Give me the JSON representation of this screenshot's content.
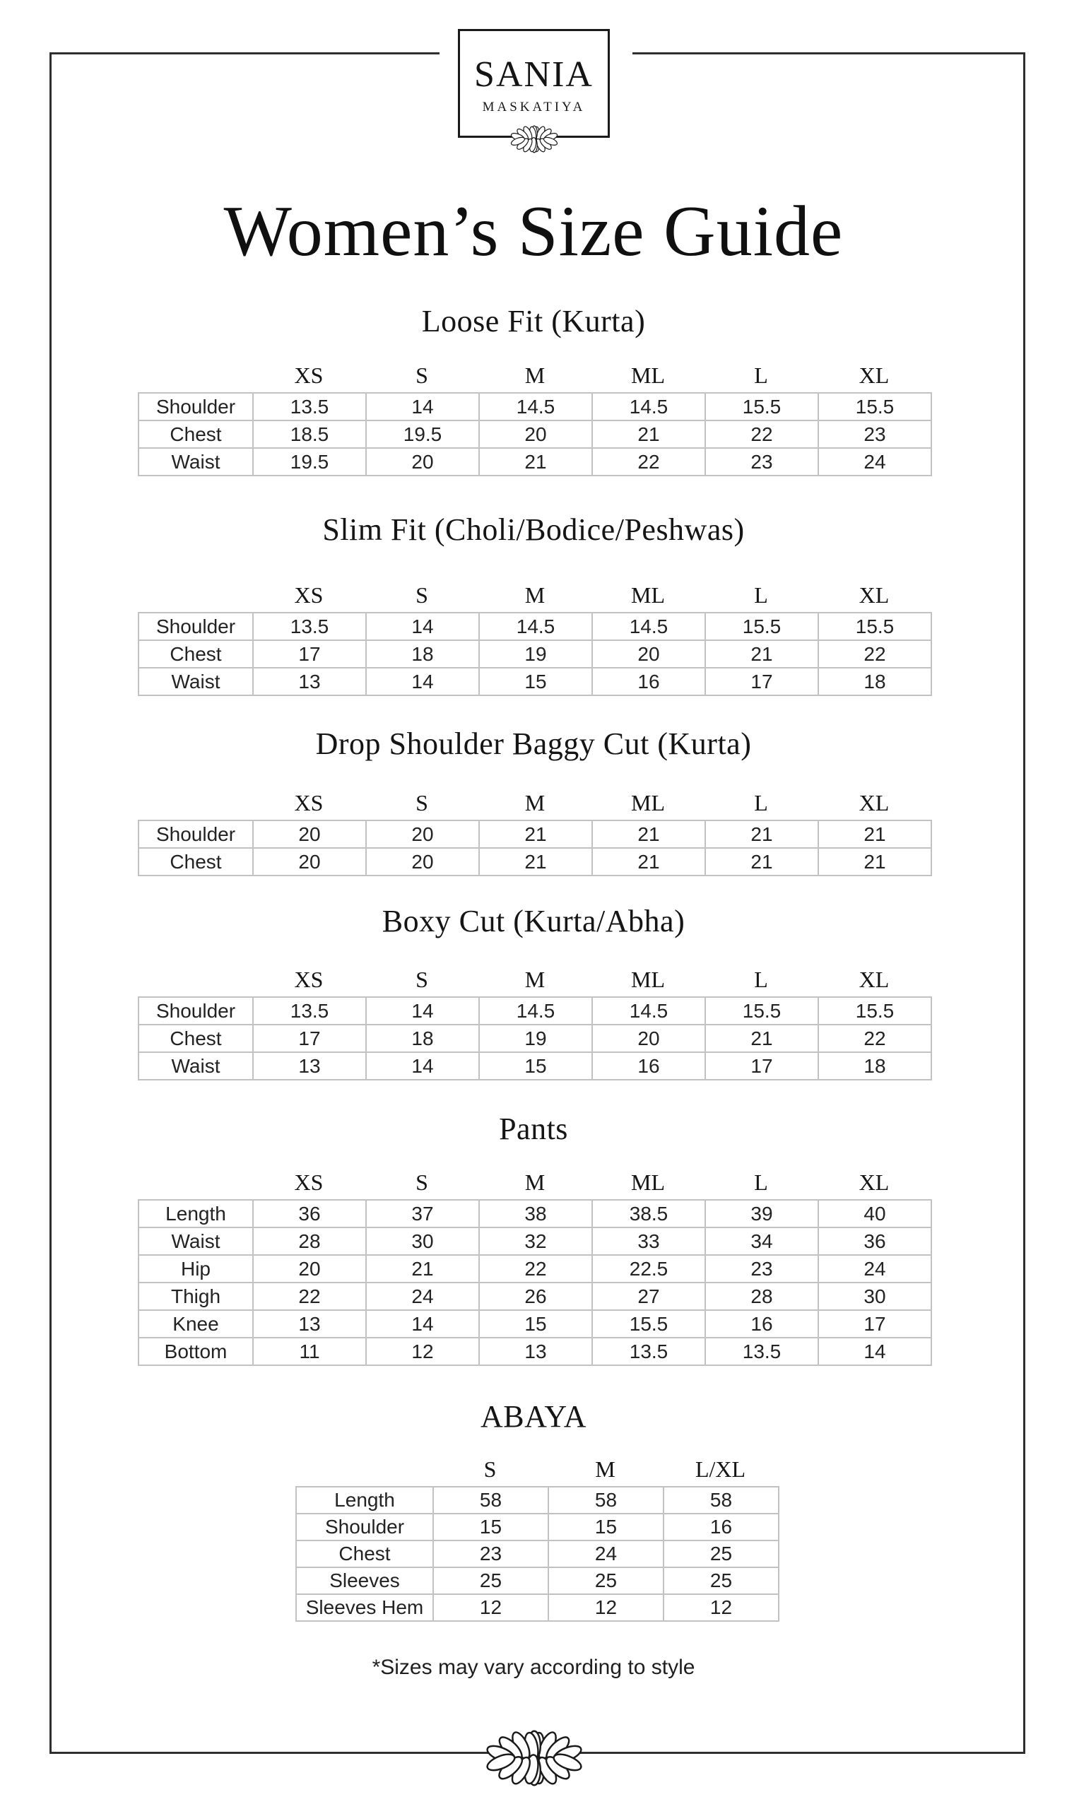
{
  "brand": {
    "name": "SANIA",
    "subname": "MASKATIYA"
  },
  "page": {
    "title": "Women’s Size Guide",
    "footnote": "*Sizes may vary according to style"
  },
  "icons": {
    "logo_ornament": "leaf-cluster-icon",
    "footer_ornament": "leaf-cluster-icon"
  },
  "colors": {
    "background": "#ffffff",
    "text": "#1b1b1b",
    "frame": "#2f2f2f",
    "table_border": "#c2c2c2"
  },
  "sections": [
    {
      "title": "Loose Fit (Kurta)",
      "columns": [
        "XS",
        "S",
        "M",
        "ML",
        "L",
        "XL"
      ],
      "rows": [
        {
          "label": "Shoulder",
          "values": [
            "13.5",
            "14",
            "14.5",
            "14.5",
            "15.5",
            "15.5"
          ]
        },
        {
          "label": "Chest",
          "values": [
            "18.5",
            "19.5",
            "20",
            "21",
            "22",
            "23"
          ]
        },
        {
          "label": "Waist",
          "values": [
            "19.5",
            "20",
            "21",
            "22",
            "23",
            "24"
          ]
        }
      ]
    },
    {
      "title": "Slim Fit (Choli/Bodice/Peshwas)",
      "columns": [
        "XS",
        "S",
        "M",
        "ML",
        "L",
        "XL"
      ],
      "rows": [
        {
          "label": "Shoulder",
          "values": [
            "13.5",
            "14",
            "14.5",
            "14.5",
            "15.5",
            "15.5"
          ]
        },
        {
          "label": "Chest",
          "values": [
            "17",
            "18",
            "19",
            "20",
            "21",
            "22"
          ]
        },
        {
          "label": "Waist",
          "values": [
            "13",
            "14",
            "15",
            "16",
            "17",
            "18"
          ]
        }
      ]
    },
    {
      "title": "Drop Shoulder Baggy Cut (Kurta)",
      "columns": [
        "XS",
        "S",
        "M",
        "ML",
        "L",
        "XL"
      ],
      "rows": [
        {
          "label": "Shoulder",
          "values": [
            "20",
            "20",
            "21",
            "21",
            "21",
            "21"
          ]
        },
        {
          "label": "Chest",
          "values": [
            "20",
            "20",
            "21",
            "21",
            "21",
            "21"
          ]
        }
      ]
    },
    {
      "title": "Boxy Cut (Kurta/Abha)",
      "columns": [
        "XS",
        "S",
        "M",
        "ML",
        "L",
        "XL"
      ],
      "rows": [
        {
          "label": "Shoulder",
          "values": [
            "13.5",
            "14",
            "14.5",
            "14.5",
            "15.5",
            "15.5"
          ]
        },
        {
          "label": "Chest",
          "values": [
            "17",
            "18",
            "19",
            "20",
            "21",
            "22"
          ]
        },
        {
          "label": "Waist",
          "values": [
            "13",
            "14",
            "15",
            "16",
            "17",
            "18"
          ]
        }
      ]
    },
    {
      "title": "Pants",
      "columns": [
        "XS",
        "S",
        "M",
        "ML",
        "L",
        "XL"
      ],
      "rows": [
        {
          "label": "Length",
          "values": [
            "36",
            "37",
            "38",
            "38.5",
            "39",
            "40"
          ]
        },
        {
          "label": "Waist",
          "values": [
            "28",
            "30",
            "32",
            "33",
            "34",
            "36"
          ]
        },
        {
          "label": "Hip",
          "values": [
            "20",
            "21",
            "22",
            "22.5",
            "23",
            "24"
          ]
        },
        {
          "label": "Thigh",
          "values": [
            "22",
            "24",
            "26",
            "27",
            "28",
            "30"
          ]
        },
        {
          "label": "Knee",
          "values": [
            "13",
            "14",
            "15",
            "15.5",
            "16",
            "17"
          ]
        },
        {
          "label": "Bottom",
          "values": [
            "11",
            "12",
            "13",
            "13.5",
            "13.5",
            "14"
          ]
        }
      ]
    },
    {
      "title": "ABAYA",
      "columns": [
        "S",
        "M",
        "L/XL"
      ],
      "rows": [
        {
          "label": "Length",
          "values": [
            "58",
            "58",
            "58"
          ]
        },
        {
          "label": "Shoulder",
          "values": [
            "15",
            "15",
            "16"
          ]
        },
        {
          "label": "Chest",
          "values": [
            "23",
            "24",
            "25"
          ]
        },
        {
          "label": "Sleeves",
          "values": [
            "25",
            "25",
            "25"
          ]
        },
        {
          "label": "Sleeves Hem",
          "values": [
            "12",
            "12",
            "12"
          ]
        }
      ]
    }
  ]
}
